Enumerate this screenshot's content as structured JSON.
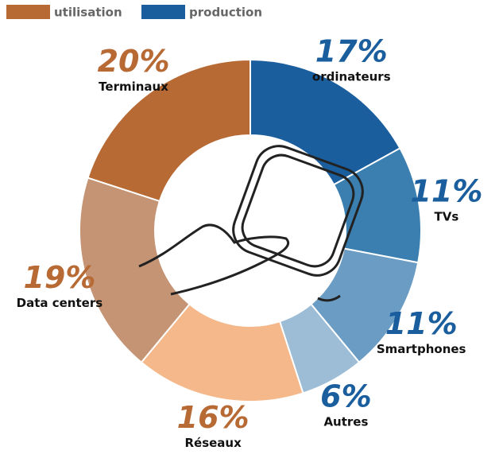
{
  "chart_data": {
    "type": "donut",
    "legend": [
      {
        "name": "utilisation",
        "color": "#b86a35"
      },
      {
        "name": "production",
        "color": "#1a5e9e"
      }
    ],
    "categories": [
      "ordinateurs",
      "TVs",
      "Smartphones",
      "Autres",
      "Réseaux",
      "Data centers",
      "Terminaux"
    ],
    "values": [
      17,
      11,
      11,
      6,
      16,
      19,
      20
    ],
    "value_labels": [
      "17%",
      "11%",
      "11%",
      "6%",
      "16%",
      "19%",
      "20%"
    ],
    "colors": [
      "#1a5e9e",
      "#3a7fb0",
      "#6a9cc4",
      "#9dbdd6",
      "#f4b88a",
      "#c49474",
      "#b86a35"
    ],
    "label_colors": [
      "#1a5e9e",
      "#1a5e9e",
      "#1a5e9e",
      "#1a5e9e",
      "#b86a35",
      "#b86a35",
      "#b86a35"
    ]
  }
}
